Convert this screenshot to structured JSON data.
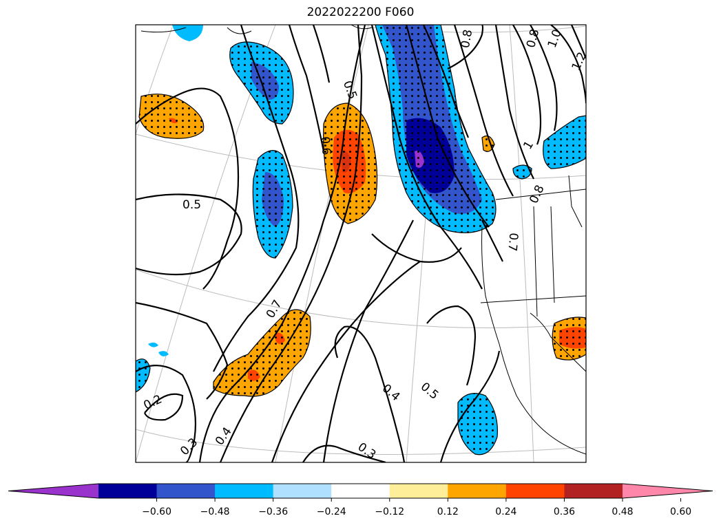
{
  "title": "2022022200 F060",
  "colorbar": {
    "colors": [
      "#9933cc",
      "#000099",
      "#3355cc",
      "#00bbff",
      "#b0e0ff",
      "#ffffff",
      "#ffee99",
      "#ffa500",
      "#ff4400",
      "#b22222",
      "#ff88aa"
    ],
    "tick_labels": [
      "−0.60",
      "−0.48",
      "−0.36",
      "−0.24",
      "−0.12",
      "0.12",
      "0.24",
      "0.36",
      "0.48",
      "0.60"
    ],
    "extend": "both"
  },
  "contour_labels": [
    "0.5",
    "0.5",
    "0.6",
    "0.7",
    "0.8",
    "0.8",
    "1.0",
    "1.2",
    "1",
    "0.8",
    "0.7",
    "0.4",
    "0.5",
    "0.2",
    "0.3",
    "0.4",
    "0.3"
  ],
  "map": {
    "fill_colors": {
      "light_blue": "#00bbff",
      "mid_blue": "#3355cc",
      "dark_blue": "#000099",
      "purple": "#9933cc",
      "orange": "#ffa500",
      "red_orange": "#ff4400"
    }
  }
}
